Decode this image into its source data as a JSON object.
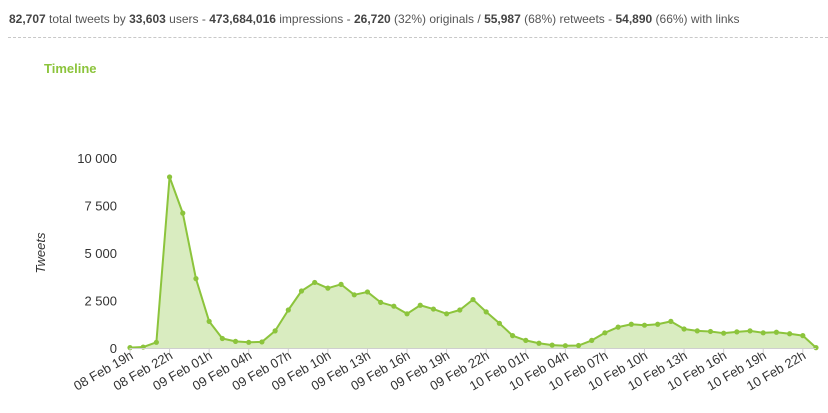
{
  "stats": {
    "tweets": "82,707",
    "tweets_label": "total tweets by",
    "users": "33,603",
    "users_label": "users -",
    "impressions": "473,684,016",
    "impressions_label": "impressions -",
    "originals": "26,720",
    "originals_label": "(32%) originals /",
    "retweets": "55,987",
    "retweets_label": "(68%) retweets -",
    "links": "54,890",
    "links_label": "(66%) with links"
  },
  "section_title": "Timeline",
  "colors": {
    "accent": "#8cc43c",
    "fill": "#d9ecc0",
    "line": "#8cc43c"
  },
  "chart_data": {
    "type": "area",
    "title": "",
    "xlabel": "",
    "ylabel": "Tweets",
    "ylim": [
      0,
      10000
    ],
    "yticks": [
      {
        "value": 0,
        "label": "0"
      },
      {
        "value": 2500,
        "label": "2 500"
      },
      {
        "value": 5000,
        "label": "5 000"
      },
      {
        "value": 7500,
        "label": "7 500"
      },
      {
        "value": 10000,
        "label": "10 000"
      }
    ],
    "xtick_labels": [
      "08 Feb 19h",
      "08 Feb 22h",
      "09 Feb 01h",
      "09 Feb 04h",
      "09 Feb 07h",
      "09 Feb 10h",
      "09 Feb 13h",
      "09 Feb 16h",
      "09 Feb 19h",
      "09 Feb 22h",
      "10 Feb 01h",
      "10 Feb 04h",
      "10 Feb 07h",
      "10 Feb 10h",
      "10 Feb 13h",
      "10 Feb 16h",
      "10 Feb 19h",
      "10 Feb 22h"
    ],
    "xtick_every": 3,
    "grid": false,
    "series": [
      {
        "values": [
          20,
          50,
          300,
          9000,
          7100,
          3650,
          1400,
          500,
          350,
          300,
          320,
          900,
          2000,
          3000,
          3450,
          3150,
          3350,
          2800,
          2950,
          2400,
          2200,
          1800,
          2250,
          2050,
          1800,
          2000,
          2550,
          1900,
          1300,
          650,
          400,
          250,
          150,
          120,
          130,
          400,
          800,
          1100,
          1250,
          1200,
          1250,
          1400,
          1000,
          900,
          870,
          780,
          850,
          900,
          800,
          830,
          750,
          650,
          20
        ]
      }
    ]
  }
}
